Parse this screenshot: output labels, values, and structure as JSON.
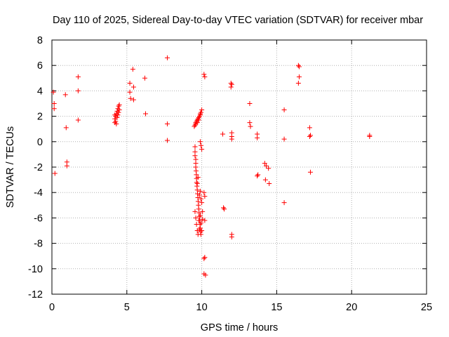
{
  "chart_data": {
    "type": "scatter",
    "title": "Day 110 of 2025, Sidereal Day-to-day VTEC variation (SDTVAR) for receiver mbar",
    "xlabel": "GPS time / hours",
    "ylabel": "SDTVAR / TECUs",
    "xlim": [
      0,
      25
    ],
    "ylim": [
      -12,
      8
    ],
    "x_ticks": [
      0,
      5,
      10,
      15,
      20,
      25
    ],
    "y_ticks": [
      -12,
      -10,
      -8,
      -6,
      -4,
      -2,
      0,
      2,
      4,
      6,
      8
    ],
    "x_tick_labels": [
      "0",
      "5",
      "10",
      "15",
      "20",
      "25"
    ],
    "y_tick_labels": [
      "-12",
      "-10",
      "-8",
      "-6",
      "-4",
      "-2",
      "0",
      "2",
      "4",
      "6",
      "8"
    ],
    "grid": true,
    "marker": "+",
    "colors": {
      "points": "#ff0000",
      "grid": "#b0b0b0",
      "axis": "#000000"
    },
    "series": [
      {
        "name": "SDTVAR",
        "points": [
          [
            0.1,
            3.9
          ],
          [
            0.15,
            3.0
          ],
          [
            0.15,
            2.6
          ],
          [
            0.2,
            -2.5
          ],
          [
            0.9,
            3.7
          ],
          [
            0.95,
            1.1
          ],
          [
            1.0,
            -1.6
          ],
          [
            1.0,
            -1.9
          ],
          [
            1.75,
            5.1
          ],
          [
            1.75,
            4.0
          ],
          [
            1.75,
            1.7
          ],
          [
            4.2,
            1.5
          ],
          [
            4.2,
            1.8
          ],
          [
            4.2,
            2.1
          ],
          [
            4.25,
            1.6
          ],
          [
            4.25,
            2.0
          ],
          [
            4.3,
            2.2
          ],
          [
            4.3,
            1.4
          ],
          [
            4.35,
            1.9
          ],
          [
            4.35,
            2.4
          ],
          [
            4.4,
            2.1
          ],
          [
            4.4,
            2.6
          ],
          [
            4.45,
            2.3
          ],
          [
            4.45,
            2.8
          ],
          [
            4.5,
            2.5
          ],
          [
            4.5,
            2.9
          ],
          [
            5.2,
            4.6
          ],
          [
            5.2,
            3.9
          ],
          [
            5.25,
            3.4
          ],
          [
            5.4,
            5.7
          ],
          [
            5.45,
            4.3
          ],
          [
            5.45,
            3.3
          ],
          [
            6.2,
            5.0
          ],
          [
            6.25,
            2.2
          ],
          [
            7.7,
            6.6
          ],
          [
            7.7,
            1.4
          ],
          [
            7.7,
            0.1
          ],
          [
            9.5,
            1.2
          ],
          [
            9.55,
            1.3
          ],
          [
            9.6,
            1.5
          ],
          [
            9.65,
            1.6
          ],
          [
            9.7,
            1.7
          ],
          [
            9.75,
            1.8
          ],
          [
            9.8,
            1.9
          ],
          [
            9.85,
            2.0
          ],
          [
            9.9,
            2.2
          ],
          [
            9.95,
            2.3
          ],
          [
            10.0,
            2.5
          ],
          [
            9.6,
            1.4
          ],
          [
            9.7,
            1.5
          ],
          [
            9.8,
            1.7
          ],
          [
            9.9,
            2.1
          ],
          [
            9.55,
            -0.4
          ],
          [
            9.55,
            -0.8
          ],
          [
            9.55,
            -1.1
          ],
          [
            9.6,
            -1.4
          ],
          [
            9.6,
            -1.7
          ],
          [
            9.6,
            -2.0
          ],
          [
            9.62,
            -2.3
          ],
          [
            9.64,
            -2.6
          ],
          [
            9.65,
            -2.9
          ],
          [
            9.66,
            -3.2
          ],
          [
            9.68,
            -3.5
          ],
          [
            9.7,
            -3.8
          ],
          [
            9.72,
            -4.1
          ],
          [
            9.74,
            -4.4
          ],
          [
            9.76,
            -4.7
          ],
          [
            9.78,
            -5.0
          ],
          [
            9.8,
            -5.3
          ],
          [
            9.82,
            -5.6
          ],
          [
            9.84,
            -5.9
          ],
          [
            9.86,
            -6.2
          ],
          [
            9.88,
            -6.5
          ],
          [
            9.9,
            -6.8
          ],
          [
            9.92,
            -7.1
          ],
          [
            9.94,
            -7.3
          ],
          [
            9.55,
            -5.5
          ],
          [
            9.6,
            -6.0
          ],
          [
            9.65,
            -6.5
          ],
          [
            9.7,
            -7.0
          ],
          [
            9.75,
            -7.3
          ],
          [
            9.8,
            -6.2
          ],
          [
            9.85,
            -6.9
          ],
          [
            9.9,
            -5.8
          ],
          [
            9.95,
            -6.4
          ],
          [
            10.0,
            -7.0
          ],
          [
            10.05,
            -5.5
          ],
          [
            10.0,
            -4.8
          ],
          [
            9.95,
            -4.5
          ],
          [
            9.9,
            -3.9
          ],
          [
            9.85,
            -4.2
          ],
          [
            9.75,
            -2.8
          ],
          [
            9.7,
            -3.3
          ],
          [
            10.05,
            -6.1
          ],
          [
            9.9,
            0.0
          ],
          [
            9.95,
            -0.3
          ],
          [
            10.0,
            -0.6
          ],
          [
            10.15,
            5.3
          ],
          [
            10.2,
            5.1
          ],
          [
            10.15,
            -4.0
          ],
          [
            10.2,
            -4.3
          ],
          [
            10.2,
            -6.2
          ],
          [
            10.2,
            -9.1
          ],
          [
            10.15,
            -9.2
          ],
          [
            10.15,
            -10.4
          ],
          [
            10.25,
            -10.5
          ],
          [
            11.4,
            0.6
          ],
          [
            11.45,
            -5.2
          ],
          [
            11.5,
            -5.3
          ],
          [
            11.95,
            4.6
          ],
          [
            11.95,
            4.3
          ],
          [
            12.0,
            4.5
          ],
          [
            12.0,
            0.7
          ],
          [
            12.0,
            0.4
          ],
          [
            12.0,
            0.2
          ],
          [
            12.0,
            -7.3
          ],
          [
            12.0,
            -7.5
          ],
          [
            13.2,
            3.0
          ],
          [
            13.2,
            1.5
          ],
          [
            13.25,
            1.2
          ],
          [
            13.7,
            0.6
          ],
          [
            13.7,
            0.3
          ],
          [
            13.75,
            -2.6
          ],
          [
            13.7,
            -2.7
          ],
          [
            14.2,
            -1.7
          ],
          [
            14.3,
            -1.9
          ],
          [
            14.45,
            -2.1
          ],
          [
            14.25,
            -3.0
          ],
          [
            14.5,
            -3.3
          ],
          [
            15.5,
            2.5
          ],
          [
            15.5,
            0.2
          ],
          [
            15.5,
            -4.8
          ],
          [
            16.45,
            6.0
          ],
          [
            16.5,
            5.9
          ],
          [
            16.5,
            5.1
          ],
          [
            16.45,
            4.6
          ],
          [
            17.2,
            1.1
          ],
          [
            17.25,
            0.5
          ],
          [
            17.2,
            0.4
          ],
          [
            17.25,
            -2.4
          ],
          [
            21.2,
            0.5
          ],
          [
            21.2,
            0.4
          ]
        ]
      }
    ]
  }
}
